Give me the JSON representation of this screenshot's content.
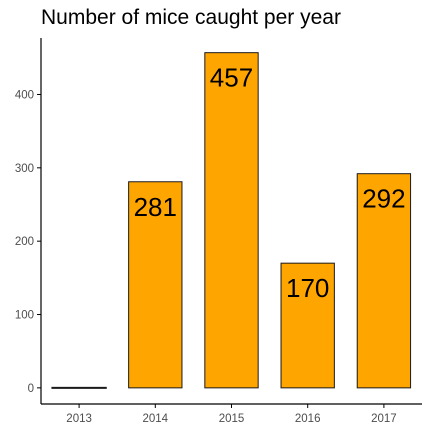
{
  "chart_data": {
    "type": "bar",
    "title": "Number of mice caught per year",
    "categories": [
      "2013",
      "2014",
      "2015",
      "2016",
      "2017"
    ],
    "values": [
      0,
      281,
      457,
      170,
      292
    ],
    "data_labels": [
      "",
      "281",
      "457",
      "170",
      "292"
    ],
    "y_ticks": [
      0,
      100,
      200,
      300,
      400
    ],
    "ylim": [
      -22,
      477
    ],
    "xlabel": "",
    "ylabel": "",
    "grid": false,
    "legend": "none",
    "colors": {
      "bar_fill": "#FFA500",
      "bar_stroke": "#1a1a1a",
      "axis": "#000000",
      "tick_text": "#4d4d4d",
      "label_text": "#000000"
    }
  }
}
